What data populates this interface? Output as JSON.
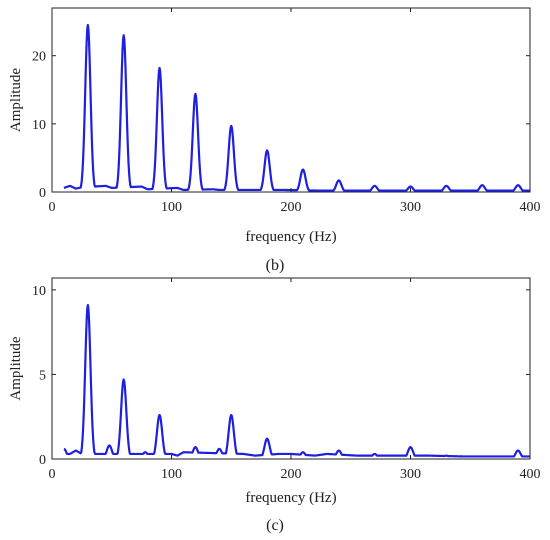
{
  "chart_data": [
    {
      "type": "line",
      "caption": "(b)",
      "title": "",
      "xlabel": "frequency (Hz)",
      "ylabel": "Amplitude",
      "xlim": [
        0,
        400
      ],
      "ylim": [
        0,
        27
      ],
      "xticks": [
        0,
        100,
        200,
        300,
        400
      ],
      "yticks": [
        0,
        10,
        20
      ],
      "color": "#1f1fe0",
      "grid": false,
      "peaks": [
        {
          "x": 30,
          "y": 24.5
        },
        {
          "x": 60,
          "y": 23.0
        },
        {
          "x": 90,
          "y": 18.2
        },
        {
          "x": 120,
          "y": 14.4
        },
        {
          "x": 150,
          "y": 9.7
        },
        {
          "x": 180,
          "y": 6.1
        },
        {
          "x": 210,
          "y": 3.3
        },
        {
          "x": 240,
          "y": 1.7
        },
        {
          "x": 270,
          "y": 0.9
        },
        {
          "x": 300,
          "y": 0.8
        },
        {
          "x": 330,
          "y": 0.9
        },
        {
          "x": 360,
          "y": 1.0
        },
        {
          "x": 390,
          "y": 1.0
        }
      ],
      "x": [
        10,
        15,
        20,
        25,
        45,
        50,
        75,
        80,
        105,
        110,
        135,
        140,
        160,
        195,
        225,
        255,
        285,
        315,
        345,
        375,
        400
      ],
      "y": [
        0.6,
        0.9,
        0.5,
        0.7,
        0.9,
        0.6,
        0.8,
        0.4,
        0.6,
        0.3,
        0.4,
        0.3,
        0.3,
        0.3,
        0.2,
        0.2,
        0.2,
        0.2,
        0.2,
        0.2,
        0.2
      ]
    },
    {
      "type": "line",
      "caption": "(c)",
      "title": "",
      "xlabel": "frequency (Hz)",
      "ylabel": "Amplitude",
      "xlim": [
        0,
        400
      ],
      "ylim": [
        0,
        10.7
      ],
      "xticks": [
        0,
        100,
        200,
        300,
        400
      ],
      "yticks": [
        0,
        5,
        10
      ],
      "color": "#1f1fe0",
      "grid": false,
      "peaks": [
        {
          "x": 10,
          "y": 0.6
        },
        {
          "x": 30,
          "y": 9.1
        },
        {
          "x": 48,
          "y": 0.8
        },
        {
          "x": 60,
          "y": 4.7
        },
        {
          "x": 78,
          "y": 0.4
        },
        {
          "x": 90,
          "y": 2.6
        },
        {
          "x": 120,
          "y": 0.7
        },
        {
          "x": 140,
          "y": 0.6
        },
        {
          "x": 150,
          "y": 2.6
        },
        {
          "x": 180,
          "y": 1.2
        },
        {
          "x": 210,
          "y": 0.4
        },
        {
          "x": 240,
          "y": 0.5
        },
        {
          "x": 270,
          "y": 0.3
        },
        {
          "x": 300,
          "y": 0.7
        },
        {
          "x": 330,
          "y": 0.2
        },
        {
          "x": 390,
          "y": 0.5
        }
      ],
      "x": [
        15,
        20,
        25,
        40,
        70,
        100,
        105,
        110,
        160,
        170,
        190,
        200,
        220,
        230,
        255,
        285,
        315,
        345,
        375,
        400
      ],
      "y": [
        0.3,
        0.5,
        0.3,
        0.3,
        0.3,
        0.3,
        0.2,
        0.4,
        0.3,
        0.2,
        0.3,
        0.3,
        0.2,
        0.3,
        0.2,
        0.2,
        0.2,
        0.15,
        0.15,
        0.15
      ]
    }
  ]
}
